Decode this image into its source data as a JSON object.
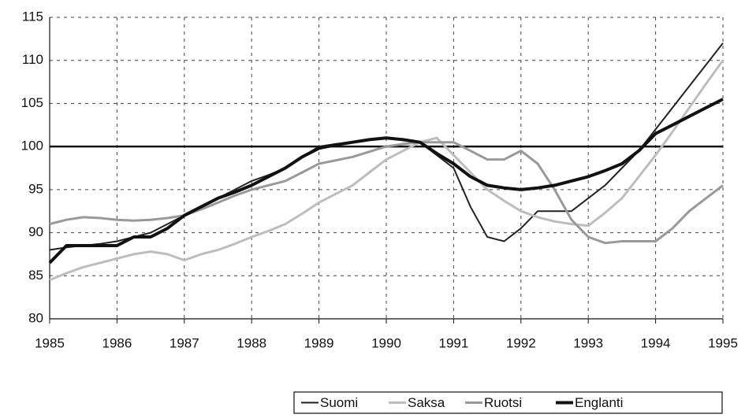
{
  "chart_data": {
    "type": "line",
    "x": [
      1985,
      1985.25,
      1985.5,
      1985.75,
      1986,
      1986.25,
      1986.5,
      1986.75,
      1987,
      1987.25,
      1987.5,
      1987.75,
      1988,
      1988.25,
      1988.5,
      1988.75,
      1989,
      1989.25,
      1989.5,
      1989.75,
      1990,
      1990.25,
      1990.5,
      1990.75,
      1991,
      1991.25,
      1991.5,
      1991.75,
      1992,
      1992.25,
      1992.5,
      1992.75,
      1993,
      1993.25,
      1993.5,
      1993.75,
      1994,
      1994.25,
      1994.5,
      1994.75,
      1995
    ],
    "series": [
      {
        "name": "Suomi",
        "color": "#222222",
        "line_width": 2,
        "values": [
          88,
          88.3,
          88.5,
          88.7,
          89,
          89.5,
          90,
          91,
          92,
          93,
          94,
          95,
          96,
          96.7,
          97.5,
          98.8,
          100,
          100.3,
          100.5,
          100.8,
          101,
          100.8,
          100.5,
          99,
          97.5,
          93,
          89.5,
          89,
          90.5,
          92.5,
          92.5,
          92.5,
          94,
          95.5,
          97.5,
          99.5,
          102,
          104.5,
          107,
          109.5,
          112
        ]
      },
      {
        "name": "Saksa",
        "color": "#bdbdbd",
        "line_width": 3,
        "values": [
          84.5,
          85.3,
          86,
          86.5,
          87,
          87.5,
          87.8,
          87.5,
          86.8,
          87.5,
          88,
          88.7,
          89.5,
          90.2,
          91,
          92.2,
          93.5,
          94.5,
          95.5,
          97,
          98.5,
          99.5,
          100.5,
          101,
          99,
          97,
          95,
          93.7,
          92.5,
          91.8,
          91.3,
          91,
          90.8,
          92.3,
          94,
          96.5,
          99,
          101.7,
          104.5,
          107.3,
          110
        ]
      },
      {
        "name": "Ruotsi",
        "color": "#999999",
        "line_width": 3,
        "values": [
          91,
          91.5,
          91.8,
          91.7,
          91.5,
          91.4,
          91.5,
          91.7,
          92,
          92.7,
          93.5,
          94.3,
          95,
          95.5,
          96,
          97,
          98,
          98.4,
          98.8,
          99.4,
          100,
          100.3,
          100.5,
          100.5,
          100.5,
          99.5,
          98.5,
          98.5,
          99.5,
          98,
          95,
          91.5,
          89.5,
          88.8,
          89,
          89,
          89,
          90.5,
          92.5,
          94,
          95.5
        ]
      },
      {
        "name": "Englanti",
        "color": "#111111",
        "line_width": 4,
        "values": [
          86.5,
          88.5,
          88.5,
          88.5,
          88.5,
          89.5,
          89.5,
          90.5,
          92,
          93,
          94,
          94.7,
          95.5,
          96.5,
          97.5,
          98.8,
          99.8,
          100.2,
          100.5,
          100.8,
          101,
          100.8,
          100.5,
          99.2,
          98,
          96.5,
          95.5,
          95.2,
          95,
          95.2,
          95.5,
          96,
          96.5,
          97.2,
          98,
          99.5,
          101.5,
          102.5,
          103.5,
          104.5,
          105.5
        ]
      }
    ],
    "xlim": [
      1985,
      1995
    ],
    "xticks": [
      1985,
      1986,
      1987,
      1988,
      1989,
      1990,
      1991,
      1992,
      1993,
      1994,
      1995
    ],
    "ylim": [
      80,
      115
    ],
    "yticks": [
      80,
      85,
      90,
      95,
      100,
      105,
      110,
      115
    ],
    "reference_line": 100,
    "grid": true,
    "legend": "bottom-right"
  }
}
